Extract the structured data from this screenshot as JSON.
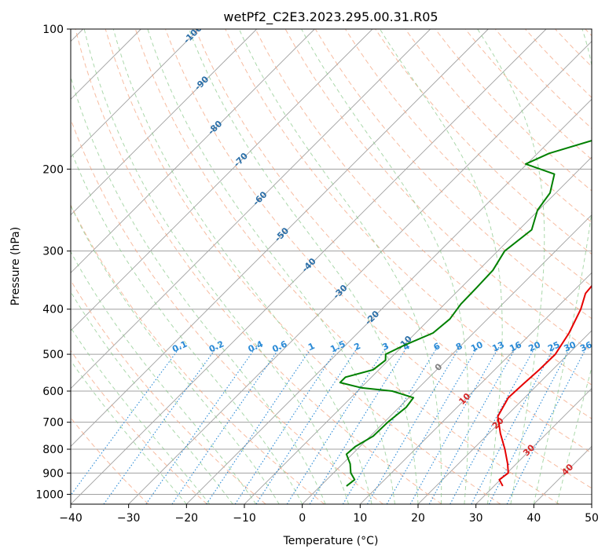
{
  "chart_data": {
    "type": "line",
    "title": "wetPf2_C2E3.2023.295.00.31.R05",
    "xlabel": "Temperature (°C)",
    "ylabel": "Pressure (hPa)",
    "xlim": [
      -40,
      50
    ],
    "ylim": [
      1050,
      100
    ],
    "y_scale": "log",
    "grid": true,
    "x_ticks": [
      "−40",
      "−30",
      "−20",
      "−10",
      "0",
      "10",
      "20",
      "30",
      "40",
      "50"
    ],
    "x_tick_values": [
      -40,
      -30,
      -20,
      -10,
      0,
      10,
      20,
      30,
      40,
      50
    ],
    "y_ticks": [
      "100",
      "200",
      "300",
      "400",
      "500",
      "600",
      "700",
      "800",
      "900",
      "1000"
    ],
    "y_tick_values": [
      100,
      200,
      300,
      400,
      500,
      600,
      700,
      800,
      900,
      1000
    ],
    "colors": {
      "temperature": "#e60000",
      "dewpoint": "#008000",
      "isotherm": "#a0a0a0",
      "dry_adiabat": "#f4a582",
      "moist_adiabat": "#88c888",
      "mixing_ratio": "#2a8ad6",
      "isotherm_label": "#2b6fa8",
      "moist_label": "#d62728",
      "zero_label": "#808080"
    },
    "series": [
      {
        "key": "temperature",
        "points": [
          {
            "p": 960,
            "t": 31.5
          },
          {
            "p": 930,
            "t": 29.8
          },
          {
            "p": 900,
            "t": 30.2
          },
          {
            "p": 860,
            "t": 28.5
          },
          {
            "p": 800,
            "t": 25.5
          },
          {
            "p": 740,
            "t": 22
          },
          {
            "p": 680,
            "t": 18.6
          },
          {
            "p": 620,
            "t": 17.2
          },
          {
            "p": 580,
            "t": 17.4
          },
          {
            "p": 540,
            "t": 17.7
          },
          {
            "p": 500,
            "t": 17.8
          },
          {
            "p": 450,
            "t": 16.5
          },
          {
            "p": 400,
            "t": 14.4
          },
          {
            "p": 370,
            "t": 12.5
          },
          {
            "p": 340,
            "t": 12
          },
          {
            "p": 300,
            "t": 11.5
          },
          {
            "p": 270,
            "t": 9.8
          },
          {
            "p": 240,
            "t": 8
          },
          {
            "p": 210,
            "t": 6.2
          },
          {
            "p": 190,
            "t": 4.6
          },
          {
            "p": 170,
            "t": 3.8
          },
          {
            "p": 155,
            "t": 4.8
          },
          {
            "p": 140,
            "t": 4.3
          },
          {
            "p": 125,
            "t": 3
          },
          {
            "p": 115,
            "t": 4.2
          },
          {
            "p": 105,
            "t": 6.5
          },
          {
            "p": 100,
            "t": 8.5
          }
        ]
      },
      {
        "key": "dewpoint",
        "points": [
          {
            "p": 960,
            "t": 4.5
          },
          {
            "p": 930,
            "t": 4.8
          },
          {
            "p": 900,
            "t": 3
          },
          {
            "p": 860,
            "t": 1.3
          },
          {
            "p": 820,
            "t": -1
          },
          {
            "p": 790,
            "t": -0.8
          },
          {
            "p": 750,
            "t": 0.5
          },
          {
            "p": 700,
            "t": 0.6
          },
          {
            "p": 650,
            "t": 1.2
          },
          {
            "p": 620,
            "t": 0.8
          },
          {
            "p": 600,
            "t": -4
          },
          {
            "p": 590,
            "t": -10
          },
          {
            "p": 575,
            "t": -14.5
          },
          {
            "p": 560,
            "t": -14.5
          },
          {
            "p": 540,
            "t": -11
          },
          {
            "p": 515,
            "t": -10.5
          },
          {
            "p": 500,
            "t": -11.5
          },
          {
            "p": 480,
            "t": -10
          },
          {
            "p": 450,
            "t": -7
          },
          {
            "p": 420,
            "t": -6.5
          },
          {
            "p": 390,
            "t": -7.2
          },
          {
            "p": 360,
            "t": -7.3
          },
          {
            "p": 330,
            "t": -7.5
          },
          {
            "p": 300,
            "t": -8.8
          },
          {
            "p": 270,
            "t": -7.8
          },
          {
            "p": 245,
            "t": -10.2
          },
          {
            "p": 225,
            "t": -11
          },
          {
            "p": 205,
            "t": -13.5
          },
          {
            "p": 195,
            "t": -20.2
          },
          {
            "p": 185,
            "t": -18
          },
          {
            "p": 172,
            "t": -12
          },
          {
            "p": 160,
            "t": -12.5
          },
          {
            "p": 150,
            "t": -16
          },
          {
            "p": 140,
            "t": -20
          },
          {
            "p": 135,
            "t": -16
          },
          {
            "p": 125,
            "t": -6.5
          },
          {
            "p": 115,
            "t": -1.5
          },
          {
            "p": 105,
            "t": 0
          },
          {
            "p": 100,
            "t": 0
          }
        ]
      }
    ],
    "isotherm_labels": [
      {
        "t": -100,
        "p": 102,
        "text": "-100"
      },
      {
        "t": -90,
        "p": 130,
        "text": "-90"
      },
      {
        "t": -80,
        "p": 162,
        "text": "-80"
      },
      {
        "t": -70,
        "p": 190,
        "text": "-70"
      },
      {
        "t": -60,
        "p": 230,
        "text": "-60"
      },
      {
        "t": -50,
        "p": 275,
        "text": "-50"
      },
      {
        "t": -40,
        "p": 320,
        "text": "-40"
      },
      {
        "t": -30,
        "p": 365,
        "text": "-30"
      },
      {
        "t": -20,
        "p": 415,
        "text": "-20"
      },
      {
        "t": -10,
        "p": 470,
        "text": "-10"
      },
      {
        "t": 0,
        "p": 530,
        "text": "0"
      }
    ],
    "moist_labels": [
      {
        "t": 10,
        "p": 620,
        "text": "10"
      },
      {
        "t": 20,
        "p": 700,
        "text": "20"
      },
      {
        "t": 30,
        "p": 800,
        "text": "30"
      },
      {
        "t": 40,
        "p": 880,
        "text": "40"
      }
    ],
    "mixing_ratio_labels": [
      "0.1",
      "0.2",
      "0.4",
      "0.6",
      "1",
      "1.5",
      "2",
      "3",
      "4",
      "6",
      "8",
      "10",
      "13",
      "16",
      "20",
      "25",
      "30",
      "36"
    ],
    "mixing_ratio_values": [
      0.1,
      0.2,
      0.4,
      0.6,
      1,
      1.5,
      2,
      3,
      4,
      6,
      8,
      10,
      13,
      16,
      20,
      25,
      30,
      36
    ]
  }
}
